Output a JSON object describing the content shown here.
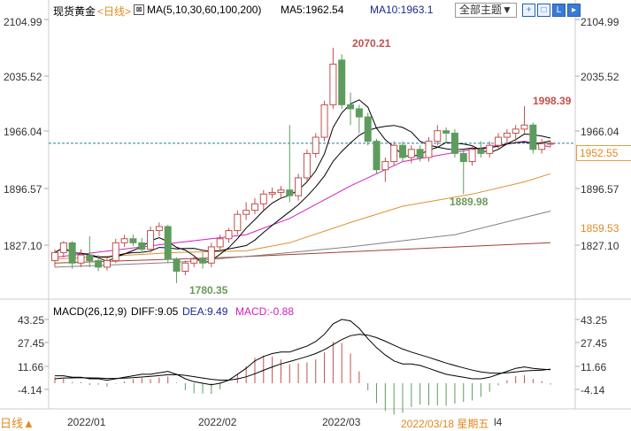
{
  "header": {
    "instrument": "现货黄金",
    "period": "<日线>",
    "ma_label": "MA(5,10,30,60,100,200)",
    "ma5": "MA5:1962.54",
    "ma10": "MA10:1963.1",
    "theme_button": "全部主题▼",
    "tool_icons": [
      "crosshair-icon",
      "zoom-fit-icon",
      "candle-mode-icon",
      "scroll-right-icon"
    ]
  },
  "price_axis": {
    "labels": [
      "2104.99",
      "2035.52",
      "1966.04",
      "1896.57",
      "1827.10"
    ],
    "current_price": "1952.55",
    "ma_value_label": "1859.53"
  },
  "macd_header": {
    "params": "MACD(26,12,9)",
    "diff": "DIFF:9.05",
    "dea": "DEA:9.49",
    "macd": "MACD:-0.88"
  },
  "macd_axis": {
    "labels": [
      "43.25",
      "27.45",
      "11.66",
      "-4.14"
    ]
  },
  "footer": {
    "period_button": "日线▲",
    "dates": [
      "2022/01",
      "2022/02",
      "2022/03"
    ],
    "cursor_date": "2022/03/18 星期五",
    "partial_date": "l4"
  },
  "annotations": {
    "high": "2070.21",
    "high2": "1998.39",
    "low": "1780.35",
    "low2": "1889.98"
  },
  "colors": {
    "up": "#c0504d",
    "down": "#5e9c5e",
    "ma5": "#000000",
    "ma10": "#000000",
    "ma30": "#d020c0",
    "ma60": "#e09030",
    "ma100": "#808080",
    "ma200": "#a04030",
    "current": "#2080a0",
    "accent": "#e08a20"
  },
  "chart_data": {
    "type": "candlestick",
    "ylim": [
      1770,
      2110
    ],
    "ohlc": [
      [
        1808,
        1822,
        1800,
        1818
      ],
      [
        1818,
        1832,
        1812,
        1830
      ],
      [
        1830,
        1832,
        1798,
        1805
      ],
      [
        1805,
        1822,
        1800,
        1815
      ],
      [
        1815,
        1838,
        1800,
        1808
      ],
      [
        1808,
        1815,
        1795,
        1800
      ],
      [
        1800,
        1812,
        1796,
        1808
      ],
      [
        1808,
        1835,
        1805,
        1830
      ],
      [
        1830,
        1840,
        1825,
        1835
      ],
      [
        1835,
        1840,
        1826,
        1830
      ],
      [
        1830,
        1836,
        1818,
        1822
      ],
      [
        1822,
        1850,
        1818,
        1845
      ],
      [
        1845,
        1855,
        1838,
        1850
      ],
      [
        1850,
        1852,
        1805,
        1810
      ],
      [
        1810,
        1812,
        1780.35,
        1795
      ],
      [
        1795,
        1808,
        1790,
        1805
      ],
      [
        1805,
        1815,
        1800,
        1810
      ],
      [
        1810,
        1818,
        1798,
        1805
      ],
      [
        1805,
        1830,
        1800,
        1825
      ],
      [
        1825,
        1840,
        1820,
        1835
      ],
      [
        1835,
        1848,
        1830,
        1845
      ],
      [
        1845,
        1870,
        1840,
        1865
      ],
      [
        1865,
        1880,
        1858,
        1870
      ],
      [
        1870,
        1885,
        1865,
        1878
      ],
      [
        1878,
        1895,
        1870,
        1890
      ],
      [
        1890,
        1898,
        1885,
        1892
      ],
      [
        1892,
        1900,
        1886,
        1895
      ],
      [
        1895,
        1975,
        1880,
        1888
      ],
      [
        1888,
        1915,
        1882,
        1910
      ],
      [
        1910,
        1945,
        1905,
        1940
      ],
      [
        1940,
        1965,
        1935,
        1960
      ],
      [
        1960,
        2005,
        1955,
        2000
      ],
      [
        2000,
        2070.21,
        1995,
        2050
      ],
      [
        2055,
        2062,
        1995,
        2000
      ],
      [
        2000,
        2015,
        1975,
        1995
      ],
      [
        1995,
        2000,
        1965,
        1985
      ],
      [
        1985,
        1990,
        1950,
        1955
      ],
      [
        1955,
        1958,
        1915,
        1920
      ],
      [
        1920,
        1935,
        1905,
        1930
      ],
      [
        1930,
        1955,
        1925,
        1950
      ],
      [
        1950,
        1955,
        1930,
        1935
      ],
      [
        1935,
        1950,
        1928,
        1945
      ],
      [
        1945,
        1950,
        1930,
        1935
      ],
      [
        1935,
        1960,
        1930,
        1955
      ],
      [
        1955,
        1975,
        1950,
        1968
      ],
      [
        1968,
        1972,
        1955,
        1965
      ],
      [
        1965,
        1970,
        1935,
        1940
      ],
      [
        1940,
        1945,
        1889.98,
        1930
      ],
      [
        1930,
        1950,
        1925,
        1945
      ],
      [
        1945,
        1955,
        1935,
        1940
      ],
      [
        1940,
        1955,
        1935,
        1950
      ],
      [
        1950,
        1965,
        1945,
        1960
      ],
      [
        1960,
        1970,
        1950,
        1965
      ],
      [
        1965,
        1975,
        1955,
        1970
      ],
      [
        1970,
        1998.39,
        1965,
        1975
      ],
      [
        1975,
        1978,
        1940,
        1945
      ],
      [
        1945,
        1958,
        1940,
        1952
      ],
      [
        1952,
        1955,
        1948,
        1952.55
      ]
    ],
    "ma30": [
      [
        0,
        1812
      ],
      [
        14,
        1830
      ],
      [
        22,
        1840
      ],
      [
        27,
        1860
      ],
      [
        34,
        1900
      ],
      [
        40,
        1930
      ],
      [
        48,
        1945
      ],
      [
        54,
        1955
      ],
      [
        57,
        1948
      ]
    ],
    "ma60": [
      [
        0,
        1810
      ],
      [
        14,
        1818
      ],
      [
        22,
        1820
      ],
      [
        27,
        1830
      ],
      [
        34,
        1855
      ],
      [
        40,
        1875
      ],
      [
        48,
        1890
      ],
      [
        54,
        1905
      ],
      [
        57,
        1915
      ]
    ],
    "ma100": [
      [
        0,
        1800
      ],
      [
        14,
        1806
      ],
      [
        24,
        1815
      ],
      [
        34,
        1825
      ],
      [
        46,
        1840
      ],
      [
        57,
        1869
      ]
    ],
    "ma200": [
      [
        0,
        1805
      ],
      [
        20,
        1812
      ],
      [
        40,
        1822
      ],
      [
        57,
        1830
      ]
    ],
    "current_price": 1952.55,
    "macd": {
      "ylim": [
        -12,
        47
      ],
      "diff": [
        5,
        5,
        4,
        4,
        3,
        3,
        2,
        3,
        4,
        5,
        6,
        6,
        7,
        8,
        6,
        3,
        1,
        0,
        -1,
        0,
        2,
        6,
        10,
        15,
        18,
        20,
        21,
        21,
        23,
        25,
        28,
        33,
        40,
        43,
        42,
        37,
        30,
        24,
        19,
        15,
        13,
        13,
        12,
        10,
        8,
        6,
        5,
        4,
        3,
        3,
        4,
        6,
        8,
        10,
        11,
        10,
        9.5,
        9.05
      ],
      "dea": [
        3,
        3.5,
        3.6,
        3.7,
        3.6,
        3.5,
        3.2,
        3.2,
        3.4,
        3.7,
        4.2,
        4.6,
        5.1,
        5.7,
        5.8,
        5.3,
        4.4,
        3.5,
        2.6,
        2.1,
        2.1,
        2.9,
        4.3,
        6.4,
        8.7,
        11,
        13,
        14.6,
        16.3,
        18,
        20,
        22.6,
        26,
        29.4,
        32,
        33,
        32.4,
        30.7,
        28.3,
        25.6,
        23,
        21,
        19.2,
        17.4,
        15.5,
        13.6,
        11.9,
        10.3,
        8.8,
        7.6,
        6.9,
        6.7,
        7,
        7.6,
        8.3,
        8.6,
        8.8,
        9.49
      ]
    }
  }
}
